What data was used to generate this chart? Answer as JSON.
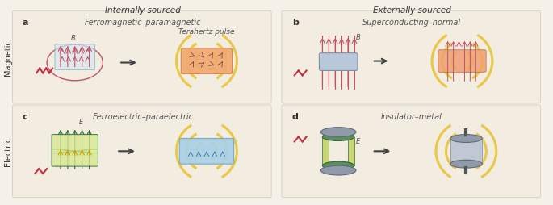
{
  "bg_color": "#f5f0e8",
  "panel_bg_top": "#f0ebe0",
  "panel_bg_bottom": "#ede8dc",
  "title_internally": "Internally sourced",
  "title_externally": "Externally sourced",
  "label_a": "a",
  "label_b": "b",
  "label_c": "c",
  "label_d": "d",
  "title_a": "Ferromagnetic–paramagnetic",
  "title_b": "Superconducting–normal",
  "title_c": "Ferroelectric–paraelectric",
  "title_d": "Insulator–metal",
  "subtitle_a": "Terahertz pulse",
  "row_label_magnetic": "Magnetic",
  "row_label_electric": "Electric",
  "magenta": "#c0526a",
  "dark_red": "#b03060",
  "pink_light": "#e8a0b0",
  "green_dark": "#2d6b3c",
  "green_med": "#4a8c5c",
  "yellow_wave": "#e8c84a",
  "yellow_light": "#f5e08a",
  "orange_box": "#f0a870",
  "orange_light": "#f5c090",
  "blue_box": "#a8d0e8",
  "blue_light": "#c8e4f0",
  "gray_box": "#b0b8c8",
  "gray_light": "#d0d8e8",
  "green_box": "#c8d880",
  "arrow_color": "#404040"
}
